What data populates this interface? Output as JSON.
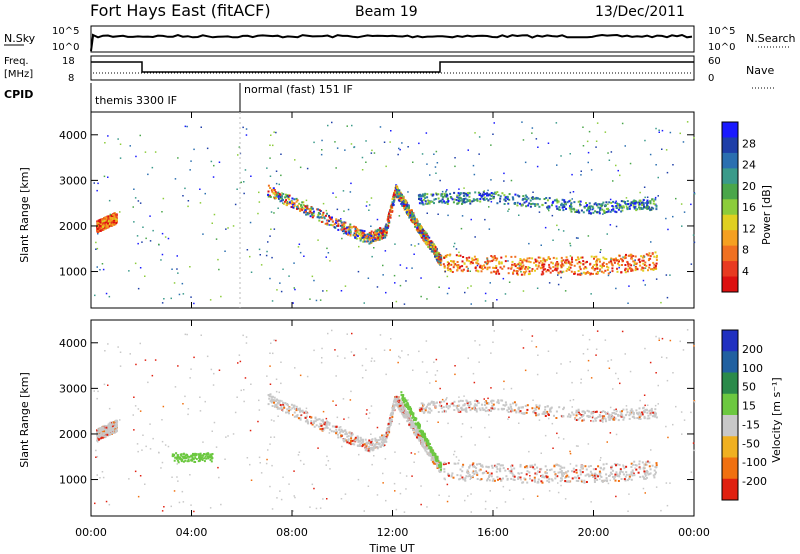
{
  "header": {
    "station": "Fort Hays East (fitACF)",
    "beam": "Beam 19",
    "date": "13/Dec/2011"
  },
  "top_panels": {
    "nsky_label": "N.Sky",
    "nsky_ticks": [
      "10^5",
      "10^0"
    ],
    "nsearch_label": "N.Search",
    "nsearch_ticks": [
      "10^5",
      "10^0"
    ],
    "freq_label_1": "Freq.",
    "freq_label_2": "[MHz]",
    "freq_ticks": [
      "18",
      "8"
    ],
    "nave_label": "Nave",
    "nave_ticks": [
      "60",
      "0"
    ],
    "cpid_label": "CPID",
    "cpid_segments": [
      "themis 3300 IF",
      "normal (fast) 151 IF"
    ]
  },
  "chart_data": [
    {
      "type": "heatmap",
      "name": "power",
      "ylabel": "Slant Range [km]",
      "yticks": [
        1000,
        2000,
        3000,
        4000
      ],
      "ylim": [
        200,
        4500
      ],
      "xlim": [
        0,
        24
      ],
      "colorbar_label": "Power [dB]",
      "colorbar_ticks": [
        "28",
        "24",
        "20",
        "16",
        "12",
        "8",
        "4"
      ],
      "colors": [
        "#1a1aff",
        "#1f3fa8",
        "#2b6fb0",
        "#3a9a8a",
        "#4aa64a",
        "#8ccc3a",
        "#e0d020",
        "#f5a020",
        "#f07020",
        "#e83a20",
        "#dd1010"
      ],
      "traces": [
        {
          "desc": "descending band",
          "points": [
            [
              7.0,
              2800
            ],
            [
              8.5,
              2400
            ],
            [
              10.0,
              2000
            ],
            [
              11.0,
              1750
            ],
            [
              11.7,
              1900
            ],
            [
              12.1,
              2800
            ]
          ]
        },
        {
          "desc": "post-12 decay",
          "points": [
            [
              12.1,
              2800
            ],
            [
              13.0,
              2000
            ],
            [
              13.9,
              1250
            ]
          ]
        },
        {
          "desc": "afternoon band",
          "points": [
            [
              14.0,
              1200
            ],
            [
              17.0,
              1150
            ],
            [
              20.0,
              1150
            ],
            [
              22.5,
              1250
            ]
          ]
        },
        {
          "desc": "upper afternoon band",
          "points": [
            [
              13.0,
              2600
            ],
            [
              16.0,
              2650
            ],
            [
              20.0,
              2400
            ],
            [
              22.5,
              2500
            ]
          ]
        },
        {
          "desc": "early band",
          "points": [
            [
              0.2,
              2000
            ],
            [
              1.0,
              2200
            ]
          ]
        }
      ]
    },
    {
      "type": "heatmap",
      "name": "velocity",
      "ylabel": "Slant Range [km]",
      "xlabel": "Time UT",
      "xticks": [
        "00:00",
        "04:00",
        "08:00",
        "12:00",
        "16:00",
        "20:00",
        "00:00"
      ],
      "yticks": [
        1000,
        2000,
        3000,
        4000
      ],
      "ylim": [
        200,
        4500
      ],
      "xlim": [
        0,
        24
      ],
      "colorbar_label": "Velocity [m s⁻¹]",
      "colorbar_ticks": [
        "200",
        "100",
        "50",
        "15",
        "-15",
        "-50",
        "-100",
        "-200"
      ],
      "colors": [
        "#2030c0",
        "#2060a0",
        "#2a8a4a",
        "#6cc840",
        "#c8c8c8",
        "#f0b020",
        "#f07010",
        "#e02010"
      ]
    }
  ]
}
